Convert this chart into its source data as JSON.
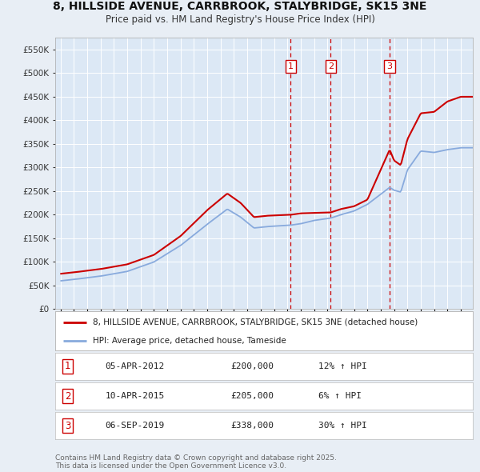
{
  "title": "8, HILLSIDE AVENUE, CARRBROOK, STALYBRIDGE, SK15 3NE",
  "subtitle": "Price paid vs. HM Land Registry's House Price Index (HPI)",
  "background_color": "#e8eef5",
  "plot_bg_color": "#dce8f5",
  "ylim": [
    0,
    575000
  ],
  "yticks": [
    0,
    50000,
    100000,
    150000,
    200000,
    250000,
    300000,
    350000,
    400000,
    450000,
    500000,
    550000
  ],
  "ytick_labels": [
    "£0",
    "£50K",
    "£100K",
    "£150K",
    "£200K",
    "£250K",
    "£300K",
    "£350K",
    "£400K",
    "£450K",
    "£500K",
    "£550K"
  ],
  "sale_prices": [
    200000,
    205000,
    338000
  ],
  "sale_labels": [
    "1",
    "2",
    "3"
  ],
  "sale_date_strs": [
    "05-APR-2012",
    "10-APR-2015",
    "06-SEP-2019"
  ],
  "sale_hpi_pcts": [
    "12% ↑ HPI",
    "6% ↑ HPI",
    "30% ↑ HPI"
  ],
  "legend_house_label": "8, HILLSIDE AVENUE, CARRBROOK, STALYBRIDGE, SK15 3NE (detached house)",
  "legend_hpi_label": "HPI: Average price, detached house, Tameside",
  "footnote": "Contains HM Land Registry data © Crown copyright and database right 2025.\nThis data is licensed under the Open Government Licence v3.0.",
  "house_line_color": "#cc0000",
  "hpi_line_color": "#88aadd",
  "dashed_line_color": "#cc0000",
  "grid_color": "#ffffff",
  "sale_box_color": "#cc0000"
}
